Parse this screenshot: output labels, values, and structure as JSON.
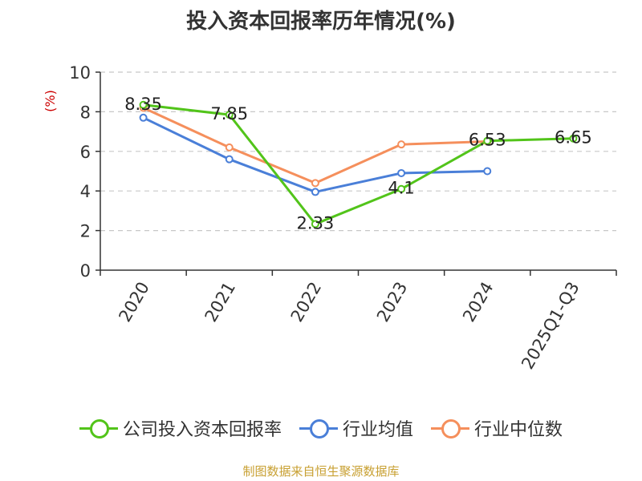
{
  "chart_data": {
    "type": "line",
    "title": "投入资本回报率历年情况(%)",
    "ylabel": "(%)",
    "categories": [
      "2020",
      "2021",
      "2022",
      "2023",
      "2024",
      "2025Q1-Q3"
    ],
    "ylim": [
      0,
      10
    ],
    "yticks": [
      0,
      2,
      4,
      6,
      8,
      10
    ],
    "grid": true,
    "legend_position": "bottom",
    "series": [
      {
        "name": "公司投入资本回报率",
        "color": "#52c41a",
        "values": [
          8.35,
          7.85,
          2.33,
          4.1,
          6.53,
          6.65
        ],
        "show_labels": true
      },
      {
        "name": "行业均值",
        "color": "#4a7fd8",
        "values": [
          7.7,
          5.6,
          3.95,
          4.9,
          5.0,
          null
        ],
        "show_labels": false
      },
      {
        "name": "行业中位数",
        "color": "#f58f5c",
        "values": [
          8.2,
          6.2,
          4.4,
          6.35,
          6.5,
          null
        ],
        "show_labels": false
      }
    ],
    "data_labels": [
      "8.35",
      "7.85",
      "2.33",
      "4.1",
      "6.53",
      "6.65"
    ]
  },
  "source": "制图数据来自恒生聚源数据库"
}
